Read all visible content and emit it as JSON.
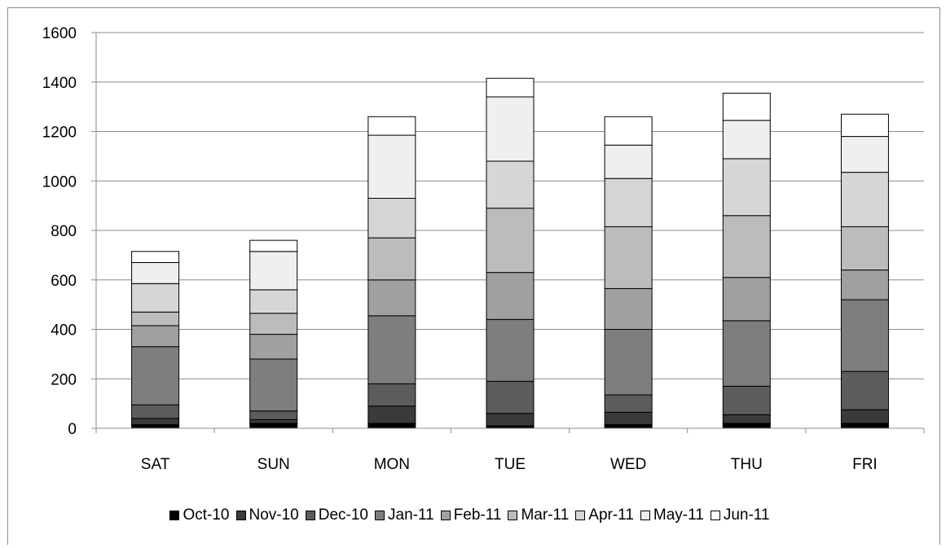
{
  "chart_data": {
    "type": "bar",
    "stacked": true,
    "categories": [
      "SAT",
      "SUN",
      "MON",
      "TUE",
      "WED",
      "THU",
      "FRI"
    ],
    "ylim": [
      0,
      1600
    ],
    "yticks": [
      0,
      200,
      400,
      600,
      800,
      1000,
      1200,
      1400,
      1600
    ],
    "grid": true,
    "legend_position": "bottom",
    "title": "",
    "xlabel": "",
    "ylabel": "",
    "series": [
      {
        "name": "Oct-10",
        "color": "#000000",
        "values": [
          15,
          20,
          20,
          10,
          15,
          20,
          20
        ]
      },
      {
        "name": "Nov-10",
        "color": "#3a3a3a",
        "values": [
          25,
          15,
          70,
          50,
          50,
          35,
          55
        ]
      },
      {
        "name": "Dec-10",
        "color": "#5c5c5c",
        "values": [
          55,
          35,
          90,
          130,
          70,
          115,
          155
        ]
      },
      {
        "name": "Jan-11",
        "color": "#7e7e7e",
        "values": [
          235,
          210,
          275,
          250,
          265,
          265,
          290
        ]
      },
      {
        "name": "Feb-11",
        "color": "#a0a0a0",
        "values": [
          85,
          100,
          145,
          190,
          165,
          175,
          120
        ]
      },
      {
        "name": "Mar-11",
        "color": "#bcbcbc",
        "values": [
          55,
          85,
          170,
          260,
          250,
          250,
          175
        ]
      },
      {
        "name": "Apr-11",
        "color": "#d6d6d6",
        "values": [
          115,
          95,
          160,
          190,
          195,
          230,
          220
        ]
      },
      {
        "name": "May-11",
        "color": "#efefef",
        "values": [
          85,
          155,
          255,
          260,
          135,
          155,
          145
        ]
      },
      {
        "name": "Jun-11",
        "color": "#ffffff",
        "values": [
          45,
          45,
          75,
          75,
          115,
          110,
          90
        ]
      }
    ]
  }
}
